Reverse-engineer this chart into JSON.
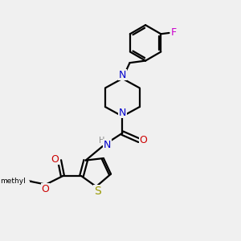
{
  "bg_color": "#f0f0f0",
  "bond_color": "#000000",
  "N_color": "#0000cc",
  "O_color": "#cc0000",
  "S_color": "#999900",
  "F_color": "#cc00cc",
  "line_width": 1.6,
  "figsize": [
    3.0,
    3.0
  ],
  "dpi": 100,
  "xlim": [
    0,
    10
  ],
  "ylim": [
    0,
    10
  ],
  "font_size_atom": 9,
  "font_size_small": 7.5
}
